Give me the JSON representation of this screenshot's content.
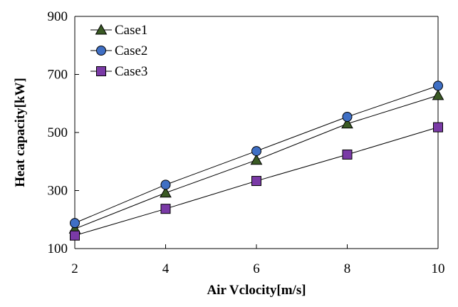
{
  "chart_data": {
    "type": "line",
    "title": "",
    "xlabel": "Air Vclocity[m/s]",
    "ylabel": "Heat capacity[kW]",
    "x": [
      2,
      4,
      6,
      8,
      10
    ],
    "xticks": [
      "2",
      "4",
      "6",
      "8",
      "10"
    ],
    "yticks": [
      "100",
      "300",
      "500",
      "700",
      "900"
    ],
    "xlim": [
      2,
      10
    ],
    "ylim": [
      100,
      900
    ],
    "grid": false,
    "legend_position": "top-left",
    "series": [
      {
        "name": "Case1",
        "marker": "triangle",
        "color": "#3a5a24",
        "values": [
          168,
          292,
          405,
          530,
          628
        ]
      },
      {
        "name": "Case2",
        "marker": "circle",
        "color": "#3f6fc4",
        "values": [
          188,
          320,
          436,
          554,
          661
        ]
      },
      {
        "name": "Case3",
        "marker": "square",
        "color": "#7a3aa6",
        "values": [
          145,
          237,
          333,
          424,
          518
        ]
      }
    ]
  }
}
